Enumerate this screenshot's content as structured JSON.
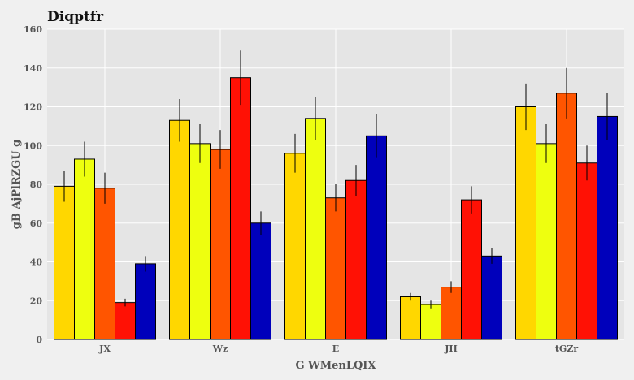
{
  "chart_data": {
    "type": "bar",
    "title": "Diqptfr",
    "xlabel": "G WMenLQIX",
    "ylabel": "gB AjPlRZGU g",
    "categories": [
      "JX",
      "Wz",
      "E",
      "JH",
      "tGZr"
    ],
    "ylim": [
      0,
      160
    ],
    "yticks": [
      0,
      20,
      40,
      60,
      80,
      100,
      120,
      140,
      160
    ],
    "grid": true,
    "legend": "none",
    "background_color": "#e5e5e5",
    "series": [
      {
        "color": "#ffd700",
        "values": [
          79,
          113,
          96,
          22,
          120
        ],
        "errors": [
          8,
          11,
          10,
          2,
          12
        ]
      },
      {
        "color": "#eeff0f",
        "values": [
          93,
          101,
          114,
          18,
          101
        ],
        "errors": [
          9,
          10,
          11,
          2,
          10
        ]
      },
      {
        "color": "#ff5500",
        "values": [
          78,
          98,
          73,
          27,
          127
        ],
        "errors": [
          8,
          10,
          7,
          3,
          13
        ]
      },
      {
        "color": "#ff1105",
        "values": [
          19,
          135,
          82,
          72,
          91
        ],
        "errors": [
          2,
          14,
          8,
          7,
          9
        ]
      },
      {
        "color": "#0000bb",
        "values": [
          39,
          60,
          105,
          43,
          115
        ],
        "errors": [
          4,
          6,
          11,
          4,
          12
        ]
      }
    ]
  }
}
